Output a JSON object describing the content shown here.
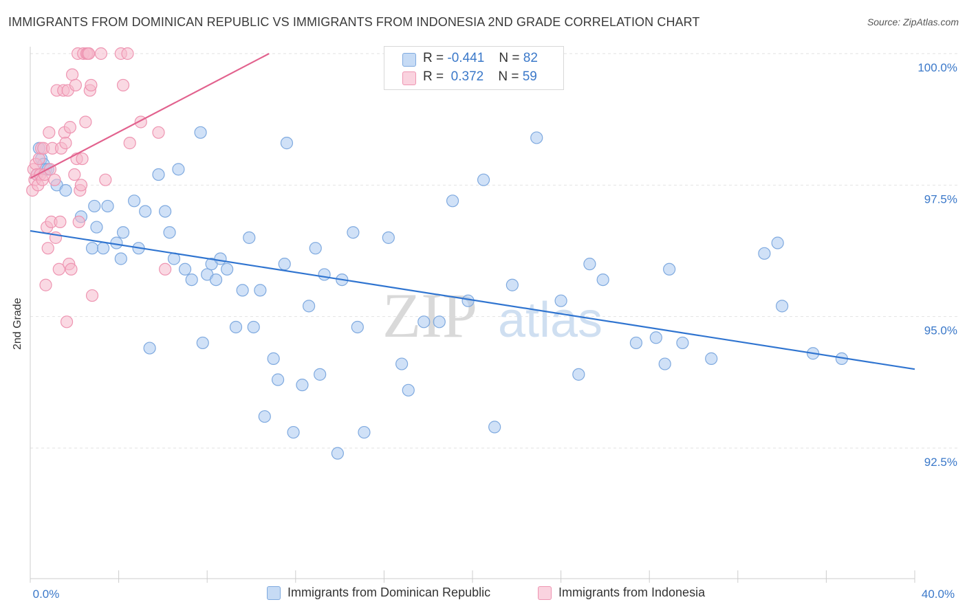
{
  "title": "IMMIGRANTS FROM DOMINICAN REPUBLIC VS IMMIGRANTS FROM INDONESIA 2ND GRADE CORRELATION CHART",
  "source": "Source: ZipAtlas.com",
  "watermark": {
    "zip": "ZIP",
    "atlas": "atlas"
  },
  "legend": {
    "rows": [
      {
        "r_label": "R =",
        "r_value": "-0.441",
        "n_label": "N =",
        "n_value": "82",
        "color": "#aac9f0"
      },
      {
        "r_label": "R =",
        "r_value": " 0.372",
        "n_label": "N =",
        "n_value": "59",
        "color": "#f6b9cc"
      }
    ]
  },
  "bottom_legend": [
    {
      "label": "Immigrants from Dominican Republic",
      "color": "#aac9f0"
    },
    {
      "label": "Immigrants from Indonesia",
      "color": "#f6b9cc"
    }
  ],
  "chart_data": {
    "type": "scatter",
    "title": "IMMIGRANTS FROM DOMINICAN REPUBLIC VS IMMIGRANTS FROM INDONESIA 2ND GRADE CORRELATION CHART",
    "xlabel": "",
    "ylabel": "2nd Grade",
    "xlim": [
      0,
      40
    ],
    "ylim": [
      90.0,
      100.4
    ],
    "x_tick_labels": [
      "0.0%",
      "40.0%"
    ],
    "y_ticks": [
      92.5,
      95.0,
      97.5,
      100.0
    ],
    "y_tick_labels": [
      "92.5%",
      "95.0%",
      "97.5%",
      "100.0%"
    ],
    "grid": true,
    "legend_position": "top-center",
    "series": [
      {
        "name": "Immigrants from Dominican Republic",
        "color": "#aac9f0",
        "stroke": "#7ea9df",
        "trend": {
          "x": [
            0,
            40
          ],
          "y": [
            96.63,
            94.0
          ],
          "color": "#2f74d0"
        },
        "points": [
          [
            0.4,
            98.2
          ],
          [
            0.5,
            98.0
          ],
          [
            0.6,
            97.9
          ],
          [
            0.7,
            97.8
          ],
          [
            0.8,
            97.8
          ],
          [
            1.2,
            97.5
          ],
          [
            1.6,
            97.4
          ],
          [
            2.3,
            96.9
          ],
          [
            2.8,
            96.3
          ],
          [
            2.9,
            97.1
          ],
          [
            3.0,
            96.7
          ],
          [
            3.3,
            96.3
          ],
          [
            3.5,
            97.1
          ],
          [
            3.9,
            96.4
          ],
          [
            4.1,
            96.1
          ],
          [
            4.2,
            96.6
          ],
          [
            4.7,
            97.2
          ],
          [
            4.9,
            96.3
          ],
          [
            5.2,
            97.0
          ],
          [
            5.4,
            94.4
          ],
          [
            5.8,
            97.7
          ],
          [
            6.1,
            97.0
          ],
          [
            6.3,
            96.6
          ],
          [
            6.5,
            96.1
          ],
          [
            6.7,
            97.8
          ],
          [
            7.0,
            95.9
          ],
          [
            7.3,
            95.7
          ],
          [
            7.7,
            98.5
          ],
          [
            7.8,
            94.5
          ],
          [
            8.0,
            95.8
          ],
          [
            8.2,
            96.0
          ],
          [
            8.4,
            95.7
          ],
          [
            8.6,
            96.1
          ],
          [
            8.9,
            95.9
          ],
          [
            9.3,
            94.8
          ],
          [
            9.6,
            95.5
          ],
          [
            9.9,
            96.5
          ],
          [
            10.1,
            94.8
          ],
          [
            10.4,
            95.5
          ],
          [
            10.6,
            93.1
          ],
          [
            11.0,
            94.2
          ],
          [
            11.2,
            93.8
          ],
          [
            11.5,
            96.0
          ],
          [
            11.6,
            98.3
          ],
          [
            11.9,
            92.8
          ],
          [
            12.3,
            93.7
          ],
          [
            12.6,
            95.2
          ],
          [
            12.9,
            96.3
          ],
          [
            13.1,
            93.9
          ],
          [
            13.3,
            95.8
          ],
          [
            13.9,
            92.4
          ],
          [
            14.1,
            95.7
          ],
          [
            14.6,
            96.6
          ],
          [
            14.8,
            94.8
          ],
          [
            15.1,
            92.8
          ],
          [
            16.2,
            96.5
          ],
          [
            16.8,
            94.1
          ],
          [
            17.1,
            93.6
          ],
          [
            17.8,
            94.9
          ],
          [
            18.5,
            94.9
          ],
          [
            19.1,
            97.2
          ],
          [
            19.8,
            95.3
          ],
          [
            20.5,
            97.6
          ],
          [
            21.0,
            92.9
          ],
          [
            21.8,
            95.6
          ],
          [
            22.9,
            98.4
          ],
          [
            24.0,
            95.3
          ],
          [
            24.8,
            93.9
          ],
          [
            25.3,
            96.0
          ],
          [
            25.9,
            95.7
          ],
          [
            27.4,
            94.5
          ],
          [
            28.3,
            94.6
          ],
          [
            28.7,
            94.1
          ],
          [
            28.9,
            95.9
          ],
          [
            29.5,
            94.5
          ],
          [
            30.8,
            94.2
          ],
          [
            33.2,
            96.2
          ],
          [
            33.8,
            96.4
          ],
          [
            34.0,
            95.2
          ],
          [
            35.4,
            94.3
          ],
          [
            36.7,
            94.2
          ],
          [
            0.3,
            97.7
          ]
        ]
      },
      {
        "name": "Immigrants from Indonesia",
        "color": "#f6b9cc",
        "stroke": "#ee94b1",
        "trend": {
          "x": [
            0,
            10.8
          ],
          "y": [
            97.63,
            100.0
          ],
          "color": "#e2628e"
        },
        "points": [
          [
            0.1,
            97.4
          ],
          [
            0.15,
            97.8
          ],
          [
            0.2,
            97.6
          ],
          [
            0.25,
            97.9
          ],
          [
            0.3,
            97.7
          ],
          [
            0.35,
            97.5
          ],
          [
            0.4,
            98.0
          ],
          [
            0.45,
            97.7
          ],
          [
            0.5,
            98.2
          ],
          [
            0.55,
            97.6
          ],
          [
            0.6,
            98.2
          ],
          [
            0.65,
            97.7
          ],
          [
            0.7,
            95.6
          ],
          [
            0.75,
            96.7
          ],
          [
            0.8,
            96.3
          ],
          [
            0.85,
            98.5
          ],
          [
            0.9,
            97.8
          ],
          [
            0.95,
            96.8
          ],
          [
            1.0,
            98.2
          ],
          [
            1.1,
            97.6
          ],
          [
            1.15,
            96.5
          ],
          [
            1.2,
            99.3
          ],
          [
            1.3,
            95.9
          ],
          [
            1.35,
            96.8
          ],
          [
            1.4,
            98.2
          ],
          [
            1.5,
            99.3
          ],
          [
            1.55,
            98.5
          ],
          [
            1.6,
            98.3
          ],
          [
            1.65,
            94.9
          ],
          [
            1.7,
            99.3
          ],
          [
            1.75,
            96.0
          ],
          [
            1.8,
            98.6
          ],
          [
            1.85,
            95.9
          ],
          [
            1.9,
            99.6
          ],
          [
            2.0,
            97.7
          ],
          [
            2.05,
            99.4
          ],
          [
            2.1,
            98.0
          ],
          [
            2.15,
            100.0
          ],
          [
            2.2,
            96.8
          ],
          [
            2.25,
            97.4
          ],
          [
            2.3,
            97.5
          ],
          [
            2.35,
            98.0
          ],
          [
            2.4,
            100.0
          ],
          [
            2.5,
            98.7
          ],
          [
            2.55,
            100.0
          ],
          [
            2.6,
            100.0
          ],
          [
            2.65,
            100.0
          ],
          [
            2.7,
            99.3
          ],
          [
            2.75,
            99.4
          ],
          [
            2.8,
            95.4
          ],
          [
            3.2,
            100.0
          ],
          [
            3.4,
            97.6
          ],
          [
            4.1,
            100.0
          ],
          [
            4.2,
            99.4
          ],
          [
            4.4,
            100.0
          ],
          [
            4.5,
            98.3
          ],
          [
            5.0,
            98.7
          ],
          [
            5.8,
            98.5
          ],
          [
            6.1,
            95.9
          ]
        ]
      }
    ]
  }
}
